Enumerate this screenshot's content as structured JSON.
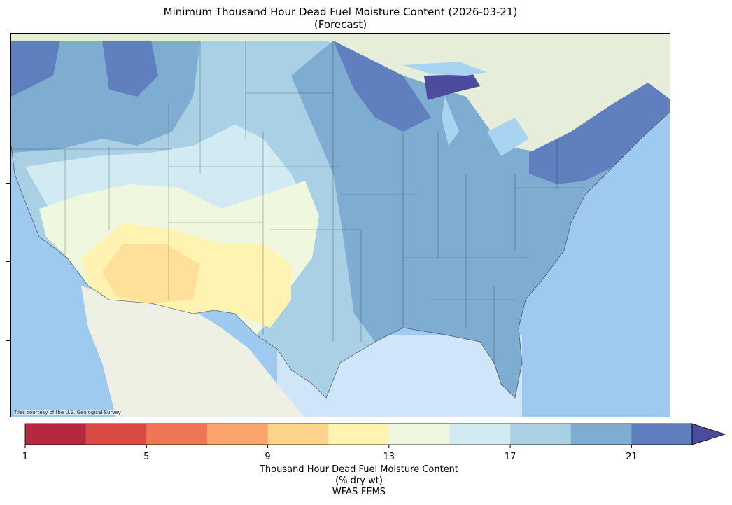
{
  "title_line1": "Minimum Thousand Hour Dead Fuel Moisture Content (2026-03-21)",
  "title_line2": "(Forecast)",
  "map": {
    "credit": "Tiles courtesy of the U.S. Geological Survey",
    "base_colors": {
      "ocean": "#8fc1ec",
      "land_canada": "#e8eedb",
      "land_mexico": "#eef0e4",
      "lakes": "#a8d4f2"
    }
  },
  "colorbar": {
    "segments": [
      "#b5283f",
      "#d94b43",
      "#ef7655",
      "#f9a56b",
      "#fed38c",
      "#fef3b0",
      "#eff8de",
      "#d2ebf3",
      "#a9d0e4",
      "#7eadd1",
      "#5f7fbf"
    ],
    "extend_color": "#4b4c9c",
    "min": 1,
    "max": 23,
    "ticks": [
      {
        "value": 1,
        "label": "1"
      },
      {
        "value": 5,
        "label": "5"
      },
      {
        "value": 9,
        "label": "9"
      },
      {
        "value": 13,
        "label": "13"
      },
      {
        "value": 17,
        "label": "17"
      },
      {
        "value": 21,
        "label": "21"
      }
    ],
    "label_line1": "Thousand Hour Dead Fuel Moisture Content",
    "label_line2": "(% dry wt)",
    "label_line3": "WFAS-FEMS"
  }
}
